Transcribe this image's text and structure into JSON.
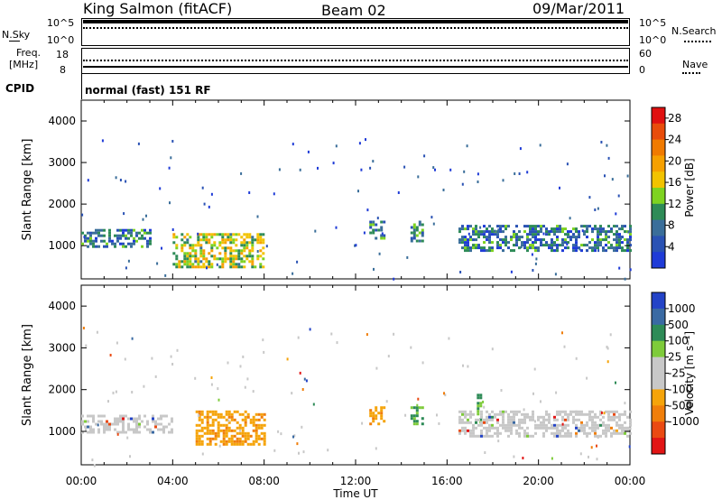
{
  "header": {
    "station": "King Salmon (fitACF)",
    "beam": "Beam 02",
    "date": "09/Mar/2011"
  },
  "noise_panel": {
    "left_label": "N.Sky",
    "right_label": "N.Search",
    "left_ticks": [
      "10^5",
      "10^0"
    ],
    "right_ticks": [
      "10^5",
      "10^0"
    ]
  },
  "freq_panel": {
    "left_label_line1": "Freq.",
    "left_label_line2": "[MHz]",
    "left_ticks": [
      "18",
      "8"
    ],
    "right_label": "Nave",
    "right_ticks": [
      "60",
      "0"
    ]
  },
  "cpid": {
    "label": "CPID",
    "value": "normal (fast) 151 RF"
  },
  "x_axis": {
    "ticks": [
      "00:00",
      "04:00",
      "08:00",
      "12:00",
      "16:00",
      "20:00",
      "00:00"
    ],
    "label": "Time UT"
  },
  "colors": {
    "power_scale": [
      "#1f3bd7",
      "#2a52b4",
      "#3a6e9a",
      "#2e8b57",
      "#7ed321",
      "#f2c300",
      "#f6a000",
      "#f07a00",
      "#e84c0a",
      "#e01010"
    ],
    "velocity_scale": [
      "#2343c7",
      "#3a6aa3",
      "#2e8b57",
      "#7ecb3a",
      "#c8c8c8",
      "#c8c8c8",
      "#f5a40a",
      "#f07e0a",
      "#ea4a12",
      "#e21515"
    ]
  },
  "chart_data": [
    {
      "type": "heatmap",
      "panel": "power",
      "ylabel": "Slant Range [km]",
      "xlabel": "",
      "y_ticks": [
        1000,
        2000,
        3000,
        4000
      ],
      "ylim": [
        200,
        4500
      ],
      "xlim_hours": [
        0,
        24
      ],
      "colorbar": {
        "label": "Power [dB]",
        "ticks": [
          4,
          8,
          12,
          16,
          20,
          24,
          28
        ],
        "range": [
          0,
          30
        ]
      },
      "regions": [
        {
          "x": [
            0.0,
            3.0
          ],
          "y": [
            1000,
            1400
          ],
          "value": 8
        },
        {
          "x": [
            4.0,
            8.0
          ],
          "y": [
            500,
            1300
          ],
          "value": 16
        },
        {
          "x": [
            12.6,
            13.3
          ],
          "y": [
            1200,
            1600
          ],
          "value": 10
        },
        {
          "x": [
            14.4,
            14.9
          ],
          "y": [
            1100,
            1600
          ],
          "value": 10
        },
        {
          "x": [
            16.5,
            24.0
          ],
          "y": [
            900,
            1500
          ],
          "value": 8
        }
      ]
    },
    {
      "type": "heatmap",
      "panel": "velocity",
      "ylabel": "Slant Range [km]",
      "xlabel": "Time UT",
      "y_ticks": [
        1000,
        2000,
        3000,
        4000
      ],
      "ylim": [
        200,
        4500
      ],
      "xlim_hours": [
        0,
        24
      ],
      "colorbar": {
        "label": "Velocity [m s⁻¹]",
        "ticks": [
          1000,
          500,
          100,
          25,
          -25,
          -100,
          -500,
          -1000
        ]
      },
      "regions": [
        {
          "x": [
            0.0,
            4.0
          ],
          "y": [
            1000,
            1400
          ],
          "value": 0
        },
        {
          "x": [
            5.0,
            8.0
          ],
          "y": [
            700,
            1500
          ],
          "value": -100
        },
        {
          "x": [
            12.6,
            13.3
          ],
          "y": [
            1200,
            1600
          ],
          "value": -100
        },
        {
          "x": [
            14.4,
            14.9
          ],
          "y": [
            1200,
            1600
          ],
          "value": 150
        },
        {
          "x": [
            17.3,
            17.5
          ],
          "y": [
            1200,
            1900
          ],
          "value": 150
        },
        {
          "x": [
            16.5,
            24.0
          ],
          "y": [
            900,
            1500
          ],
          "value": 0
        }
      ]
    }
  ]
}
